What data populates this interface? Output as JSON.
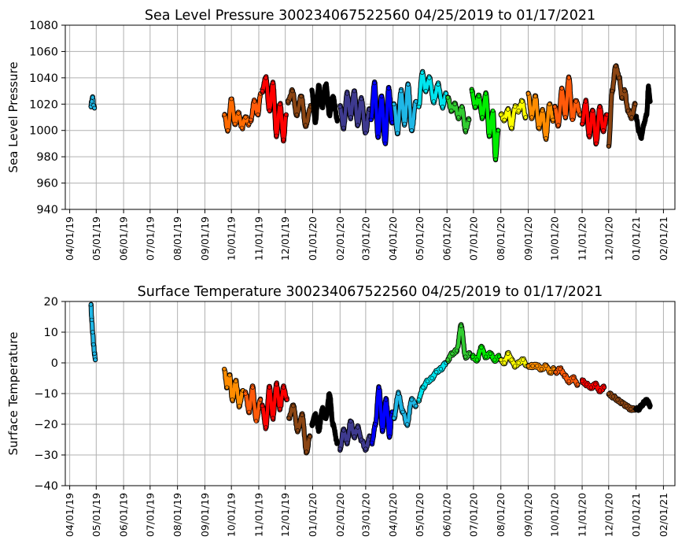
{
  "chart_data": [
    {
      "type": "scatter",
      "title": "Sea Level Pressure 300234067522560  04/25/2019 to 01/17/2021",
      "ylabel": "Sea Level Pressure",
      "xlabel": "",
      "x_range": [
        "2019-03-27",
        "2021-02-14"
      ],
      "ylim": [
        940,
        1080
      ],
      "yticks": [
        940,
        960,
        980,
        1000,
        1020,
        1040,
        1060,
        1080
      ],
      "xtick_labels": [
        "04/01/19",
        "05/01/19",
        "06/01/19",
        "07/01/19",
        "08/01/19",
        "09/01/19",
        "10/01/19",
        "11/01/19",
        "12/01/19",
        "01/01/20",
        "02/01/20",
        "03/01/20",
        "04/01/20",
        "05/01/20",
        "06/01/20",
        "07/01/20",
        "08/01/20",
        "09/01/20",
        "10/01/20",
        "11/01/20",
        "12/01/20",
        "01/01/21",
        "02/01/21"
      ],
      "xtick_dates": [
        "2019-04-01",
        "2019-05-01",
        "2019-06-01",
        "2019-07-01",
        "2019-08-01",
        "2019-09-01",
        "2019-10-01",
        "2019-11-01",
        "2019-12-01",
        "2020-01-01",
        "2020-02-01",
        "2020-03-01",
        "2020-04-01",
        "2020-05-01",
        "2020-06-01",
        "2020-07-01",
        "2020-08-01",
        "2020-09-01",
        "2020-10-01",
        "2020-11-01",
        "2020-12-01",
        "2021-01-01",
        "2021-02-01"
      ],
      "grid": true,
      "series": [
        {
          "color": "#1fb7e6",
          "x": [
            "2019-04-25",
            "2019-04-26",
            "2019-04-27",
            "2019-04-28",
            "2019-04-29"
          ],
          "y": [
            1018,
            1022,
            1025,
            1019,
            1017
          ]
        },
        {
          "color": "#ff6a00",
          "x": [
            "2019-09-23",
            "2019-09-27",
            "2019-10-01",
            "2019-10-05",
            "2019-10-09",
            "2019-10-13",
            "2019-10-17",
            "2019-10-21"
          ],
          "y": [
            1012,
            1000,
            1024,
            1005,
            1013,
            1002,
            1010,
            1005
          ]
        },
        {
          "color": "#ff5a0a",
          "x": [
            "2019-10-23",
            "2019-10-27",
            "2019-10-31",
            "2019-11-03"
          ],
          "y": [
            1008,
            1022,
            1012,
            1028
          ]
        },
        {
          "color": "#ff0000",
          "x": [
            "2019-11-05",
            "2019-11-09",
            "2019-11-13",
            "2019-11-17",
            "2019-11-21",
            "2019-11-25",
            "2019-11-29",
            "2019-12-02"
          ],
          "y": [
            1030,
            1040,
            1015,
            1036,
            996,
            1020,
            993,
            1012
          ]
        },
        {
          "color": "#8b4513",
          "x": [
            "2019-12-04",
            "2019-12-09",
            "2019-12-14",
            "2019-12-19",
            "2019-12-24",
            "2019-12-30"
          ],
          "y": [
            1022,
            1030,
            1012,
            1026,
            1004,
            1018
          ]
        },
        {
          "color": "#000000",
          "x": [
            "2019-12-31",
            "2020-01-04",
            "2020-01-08",
            "2020-01-12",
            "2020-01-16",
            "2020-01-20",
            "2020-01-24",
            "2020-01-29"
          ],
          "y": [
            1030,
            1007,
            1034,
            1018,
            1035,
            1012,
            1025,
            1008
          ]
        },
        {
          "color": "#3e3a8f",
          "x": [
            "2020-02-01",
            "2020-02-05",
            "2020-02-09",
            "2020-02-13",
            "2020-02-17",
            "2020-02-21",
            "2020-02-25",
            "2020-03-01",
            "2020-03-05"
          ],
          "y": [
            1018,
            1002,
            1028,
            1010,
            1030,
            1004,
            1024,
            998,
            1016
          ]
        },
        {
          "color": "#0000ff",
          "x": [
            "2020-03-07",
            "2020-03-11",
            "2020-03-15",
            "2020-03-19",
            "2020-03-23",
            "2020-03-27",
            "2020-03-31"
          ],
          "y": [
            1008,
            1036,
            995,
            1026,
            990,
            1032,
            1006
          ]
        },
        {
          "color": "#1fb7e6",
          "x": [
            "2020-04-02",
            "2020-04-06",
            "2020-04-10",
            "2020-04-14",
            "2020-04-18",
            "2020-04-22",
            "2020-04-27"
          ],
          "y": [
            1020,
            998,
            1030,
            1005,
            1035,
            1000,
            1022
          ]
        },
        {
          "color": "#00e5ee",
          "x": [
            "2020-04-30",
            "2020-05-04",
            "2020-05-08",
            "2020-05-12",
            "2020-05-17",
            "2020-05-22",
            "2020-05-27",
            "2020-05-31"
          ],
          "y": [
            1018,
            1044,
            1030,
            1040,
            1022,
            1035,
            1018,
            1028
          ]
        },
        {
          "color": "#32cd32",
          "x": [
            "2020-06-02",
            "2020-06-06",
            "2020-06-10",
            "2020-06-14",
            "2020-06-18",
            "2020-06-22",
            "2020-06-26"
          ],
          "y": [
            1025,
            1015,
            1020,
            1010,
            1018,
            1000,
            1008
          ]
        },
        {
          "color": "#00ee00",
          "x": [
            "2020-06-29",
            "2020-07-03",
            "2020-07-07",
            "2020-07-11",
            "2020-07-15",
            "2020-07-19",
            "2020-07-23",
            "2020-07-26",
            "2020-07-29"
          ],
          "y": [
            1030,
            1018,
            1026,
            1010,
            1028,
            996,
            1015,
            978,
            1000
          ]
        },
        {
          "color": "#ffff00",
          "x": [
            "2020-08-01",
            "2020-08-05",
            "2020-08-09",
            "2020-08-13",
            "2020-08-17",
            "2020-08-21",
            "2020-08-25",
            "2020-08-29"
          ],
          "y": [
            1012,
            1008,
            1016,
            1002,
            1018,
            1015,
            1022,
            1010
          ]
        },
        {
          "color": "#ff8c00",
          "x": [
            "2020-09-01",
            "2020-09-05",
            "2020-09-09",
            "2020-09-13",
            "2020-09-17",
            "2020-09-21",
            "2020-09-25",
            "2020-09-29"
          ],
          "y": [
            1028,
            1010,
            1026,
            1002,
            1015,
            994,
            1020,
            1008
          ]
        },
        {
          "color": "#ff5a0a",
          "x": [
            "2020-10-01",
            "2020-10-05",
            "2020-10-09",
            "2020-10-13",
            "2020-10-17",
            "2020-10-21",
            "2020-10-25",
            "2020-10-30"
          ],
          "y": [
            1018,
            1004,
            1032,
            1010,
            1040,
            1008,
            1022,
            1012
          ]
        },
        {
          "color": "#ff0000",
          "x": [
            "2020-11-01",
            "2020-11-05",
            "2020-11-09",
            "2020-11-13",
            "2020-11-17",
            "2020-11-21",
            "2020-11-25",
            "2020-11-29"
          ],
          "y": [
            1005,
            1022,
            996,
            1015,
            990,
            1018,
            1000,
            1012
          ]
        },
        {
          "color": "#8b4513",
          "x": [
            "2020-12-01",
            "2020-12-05",
            "2020-12-09",
            "2020-12-13",
            "2020-12-16",
            "2020-12-19",
            "2020-12-23",
            "2020-12-27",
            "2020-12-31"
          ],
          "y": [
            988,
            1030,
            1049,
            1040,
            1025,
            1030,
            1015,
            1010,
            1020
          ]
        },
        {
          "color": "#000000",
          "x": [
            "2021-01-01",
            "2021-01-04",
            "2021-01-07",
            "2021-01-10",
            "2021-01-13",
            "2021-01-15",
            "2021-01-17"
          ],
          "y": [
            1010,
            1000,
            995,
            1005,
            1012,
            1033,
            1022
          ]
        }
      ]
    },
    {
      "type": "scatter",
      "title": "Surface Temperature 300234067522560  04/25/2019 to 01/17/2021",
      "ylabel": "Surface Temperature",
      "xlabel": "",
      "x_range": [
        "2019-03-27",
        "2021-02-14"
      ],
      "ylim": [
        -40,
        20
      ],
      "yticks": [
        -40,
        -30,
        -20,
        -10,
        0,
        10,
        20
      ],
      "ytick_labels": [
        "−40",
        "−30",
        "−20",
        "−10",
        "0",
        "10",
        "20"
      ],
      "xtick_labels": [
        "04/01/19",
        "05/01/19",
        "06/01/19",
        "07/01/19",
        "08/01/19",
        "09/01/19",
        "10/01/19",
        "11/01/19",
        "12/01/19",
        "01/01/20",
        "02/01/20",
        "03/01/20",
        "04/01/20",
        "05/01/20",
        "06/01/20",
        "07/01/20",
        "08/01/20",
        "09/01/20",
        "10/01/20",
        "11/01/20",
        "12/01/20",
        "01/01/21",
        "02/01/21"
      ],
      "xtick_dates": [
        "2019-04-01",
        "2019-05-01",
        "2019-06-01",
        "2019-07-01",
        "2019-08-01",
        "2019-09-01",
        "2019-10-01",
        "2019-11-01",
        "2019-12-01",
        "2020-01-01",
        "2020-02-01",
        "2020-03-01",
        "2020-04-01",
        "2020-05-01",
        "2020-06-01",
        "2020-07-01",
        "2020-08-01",
        "2020-09-01",
        "2020-10-01",
        "2020-11-01",
        "2020-12-01",
        "2021-01-01",
        "2021-02-01"
      ],
      "grid": true,
      "series": [
        {
          "color": "#1fb7e6",
          "x": [
            "2019-04-25",
            "2019-04-26",
            "2019-04-27",
            "2019-04-28",
            "2019-04-29",
            "2019-04-30"
          ],
          "y": [
            19,
            14,
            10,
            6,
            3,
            1
          ]
        },
        {
          "color": "#ff8c00",
          "x": [
            "2019-09-23",
            "2019-09-26",
            "2019-09-29",
            "2019-10-02",
            "2019-10-06",
            "2019-10-10",
            "2019-10-14"
          ],
          "y": [
            -2,
            -8,
            -4,
            -12,
            -6,
            -14,
            -9
          ]
        },
        {
          "color": "#ff5a0a",
          "x": [
            "2019-10-17",
            "2019-10-21",
            "2019-10-25",
            "2019-10-29",
            "2019-11-03"
          ],
          "y": [
            -10,
            -16,
            -8,
            -19,
            -12
          ]
        },
        {
          "color": "#ff0000",
          "x": [
            "2019-11-05",
            "2019-11-09",
            "2019-11-13",
            "2019-11-17",
            "2019-11-21",
            "2019-11-25",
            "2019-11-29",
            "2019-12-03"
          ],
          "y": [
            -14,
            -21,
            -8,
            -18,
            -7,
            -15,
            -8,
            -12
          ]
        },
        {
          "color": "#8b4513",
          "x": [
            "2019-12-05",
            "2019-12-10",
            "2019-12-15",
            "2019-12-20",
            "2019-12-25",
            "2019-12-29"
          ],
          "y": [
            -18,
            -14,
            -22,
            -17,
            -29,
            -24
          ]
        },
        {
          "color": "#000000",
          "x": [
            "2019-12-31",
            "2020-01-04",
            "2020-01-08",
            "2020-01-12",
            "2020-01-16",
            "2020-01-20",
            "2020-01-24",
            "2020-01-29"
          ],
          "y": [
            -20,
            -17,
            -22,
            -15,
            -18,
            -10,
            -20,
            -26
          ]
        },
        {
          "color": "#3e3a8f",
          "x": [
            "2020-02-01",
            "2020-02-05",
            "2020-02-09",
            "2020-02-13",
            "2020-02-17",
            "2020-02-21",
            "2020-02-25",
            "2020-03-01",
            "2020-03-06"
          ],
          "y": [
            -28,
            -22,
            -26,
            -19,
            -24,
            -21,
            -25,
            -28,
            -24
          ]
        },
        {
          "color": "#0000ff",
          "x": [
            "2020-03-08",
            "2020-03-12",
            "2020-03-16",
            "2020-03-20",
            "2020-03-24",
            "2020-03-28",
            "2020-03-31"
          ],
          "y": [
            -26,
            -20,
            -8,
            -22,
            -12,
            -24,
            -16
          ]
        },
        {
          "color": "#1fb7e6",
          "x": [
            "2020-04-02",
            "2020-04-07",
            "2020-04-12",
            "2020-04-17",
            "2020-04-22",
            "2020-04-27"
          ],
          "y": [
            -18,
            -10,
            -16,
            -20,
            -12,
            -14
          ]
        },
        {
          "color": "#00e5ee",
          "x": [
            "2020-04-30",
            "2020-05-05",
            "2020-05-10",
            "2020-05-15",
            "2020-05-20",
            "2020-05-25",
            "2020-05-31"
          ],
          "y": [
            -12,
            -8,
            -6,
            -5,
            -3,
            -2,
            0
          ]
        },
        {
          "color": "#32cd32",
          "x": [
            "2020-06-02",
            "2020-06-07",
            "2020-06-12",
            "2020-06-17",
            "2020-06-22",
            "2020-06-27"
          ],
          "y": [
            1,
            3,
            4,
            12,
            2,
            3
          ]
        },
        {
          "color": "#00ee00",
          "x": [
            "2020-06-30",
            "2020-07-05",
            "2020-07-10",
            "2020-07-15",
            "2020-07-20",
            "2020-07-25",
            "2020-07-30"
          ],
          "y": [
            2,
            1,
            5,
            2,
            3,
            1,
            2
          ]
        },
        {
          "color": "#ffff00",
          "x": [
            "2020-08-01",
            "2020-08-05",
            "2020-08-09",
            "2020-08-13",
            "2020-08-17",
            "2020-08-21",
            "2020-08-26",
            "2020-08-30"
          ],
          "y": [
            1,
            0,
            3,
            1,
            -1,
            0,
            1,
            -1
          ]
        },
        {
          "color": "#ff8c00",
          "x": [
            "2020-09-01",
            "2020-09-06",
            "2020-09-11",
            "2020-09-16",
            "2020-09-21",
            "2020-09-26",
            "2020-09-30"
          ],
          "y": [
            -1,
            -1,
            -1,
            -2,
            -1,
            -3,
            -2
          ]
        },
        {
          "color": "#ff5a0a",
          "x": [
            "2020-10-02",
            "2020-10-07",
            "2020-10-12",
            "2020-10-17",
            "2020-10-22",
            "2020-10-27"
          ],
          "y": [
            -3,
            -2,
            -4,
            -6,
            -5,
            -7
          ]
        },
        {
          "color": "#ff0000",
          "x": [
            "2020-11-01",
            "2020-11-06",
            "2020-11-11",
            "2020-11-16",
            "2020-11-21",
            "2020-11-26"
          ],
          "y": [
            -6,
            -7,
            -8,
            -7,
            -9,
            -8
          ]
        },
        {
          "color": "#8b4513",
          "x": [
            "2020-12-01",
            "2020-12-06",
            "2020-12-11",
            "2020-12-16",
            "2020-12-21",
            "2020-12-26",
            "2020-12-31"
          ],
          "y": [
            -10,
            -11,
            -12,
            -13,
            -14,
            -15,
            -15
          ]
        },
        {
          "color": "#000000",
          "x": [
            "2021-01-01",
            "2021-01-04",
            "2021-01-07",
            "2021-01-10",
            "2021-01-13",
            "2021-01-15",
            "2021-01-17"
          ],
          "y": [
            -15,
            -15,
            -14,
            -13,
            -12,
            -13,
            -14
          ]
        }
      ]
    }
  ]
}
